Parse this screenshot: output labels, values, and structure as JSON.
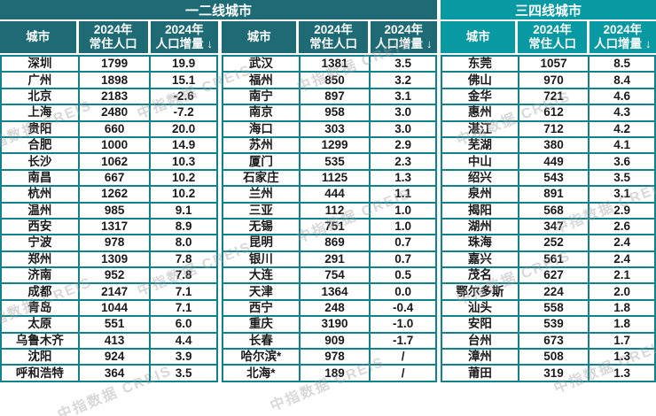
{
  "colors": {
    "header_dark_teal": "#1F6B75",
    "header_bright_teal": "#0899A2",
    "cell_border_teal": "#0F828C",
    "text": "#1A1A1A"
  },
  "watermark": {
    "text": "中指数据 CREIS"
  },
  "header": {
    "groups": [
      "一二线城市",
      "三四线城市"
    ],
    "city": "城市",
    "year": "2024年",
    "pop_line": "常住人口",
    "inc_line": "人口增量 ↓"
  },
  "chart_data": [
    {
      "type": "table",
      "group": "一二线城市",
      "columns": [
        "城市",
        "2024年常住人口",
        "2024年人口增量 ↓"
      ],
      "rows": [
        [
          "深圳",
          "1799",
          "19.9"
        ],
        [
          "广州",
          "1898",
          "15.1"
        ],
        [
          "北京",
          "2183",
          "-2.6"
        ],
        [
          "上海",
          "2480",
          "-7.2"
        ],
        [
          "贵阳",
          "660",
          "20.0"
        ],
        [
          "合肥",
          "1000",
          "14.9"
        ],
        [
          "长沙",
          "1062",
          "10.3"
        ],
        [
          "南昌",
          "667",
          "10.2"
        ],
        [
          "杭州",
          "1262",
          "10.2"
        ],
        [
          "温州",
          "985",
          "9.1"
        ],
        [
          "西安",
          "1317",
          "8.9"
        ],
        [
          "宁波",
          "978",
          "8.0"
        ],
        [
          "郑州",
          "1309",
          "7.8"
        ],
        [
          "济南",
          "952",
          "7.8"
        ],
        [
          "成都",
          "2147",
          "7.1"
        ],
        [
          "青岛",
          "1044",
          "7.1"
        ],
        [
          "太原",
          "551",
          "6.0"
        ],
        [
          "乌鲁木齐",
          "413",
          "4.4"
        ],
        [
          "沈阳",
          "924",
          "3.9"
        ],
        [
          "呼和浩特",
          "364",
          "3.5"
        ]
      ]
    },
    {
      "type": "table",
      "group": "一二线城市",
      "columns": [
        "城市",
        "2024年常住人口",
        "2024年人口增量 ↓"
      ],
      "rows": [
        [
          "武汉",
          "1381",
          "3.5"
        ],
        [
          "福州",
          "850",
          "3.2"
        ],
        [
          "南宁",
          "897",
          "3.1"
        ],
        [
          "南京",
          "958",
          "3.0"
        ],
        [
          "海口",
          "303",
          "3.0"
        ],
        [
          "苏州",
          "1299",
          "2.9"
        ],
        [
          "厦门",
          "535",
          "2.3"
        ],
        [
          "石家庄",
          "1125",
          "1.3"
        ],
        [
          "兰州",
          "444",
          "1.1"
        ],
        [
          "三亚",
          "112",
          "1.0"
        ],
        [
          "无锡",
          "751",
          "1.0"
        ],
        [
          "昆明",
          "869",
          "0.7"
        ],
        [
          "银川",
          "291",
          "0.7"
        ],
        [
          "大连",
          "754",
          "0.5"
        ],
        [
          "天津",
          "1364",
          "0.0"
        ],
        [
          "西宁",
          "248",
          "-0.4"
        ],
        [
          "重庆",
          "3190",
          "-1.0"
        ],
        [
          "长春",
          "909",
          "-1.7"
        ],
        [
          "哈尔滨*",
          "978",
          "/"
        ],
        [
          "北海*",
          "189",
          "/"
        ]
      ]
    },
    {
      "type": "table",
      "group": "三四线城市",
      "columns": [
        "城市",
        "2024年常住人口",
        "2024年人口增量 ↓"
      ],
      "rows": [
        [
          "东莞",
          "1057",
          "8.5"
        ],
        [
          "佛山",
          "970",
          "8.4"
        ],
        [
          "金华",
          "721",
          "4.6"
        ],
        [
          "惠州",
          "612",
          "4.3"
        ],
        [
          "湛江",
          "712",
          "4.2"
        ],
        [
          "芜湖",
          "380",
          "4.1"
        ],
        [
          "中山",
          "449",
          "3.6"
        ],
        [
          "绍兴",
          "543",
          "3.5"
        ],
        [
          "泉州",
          "891",
          "3.1"
        ],
        [
          "揭阳",
          "568",
          "2.9"
        ],
        [
          "湖州",
          "347",
          "2.6"
        ],
        [
          "珠海",
          "252",
          "2.4"
        ],
        [
          "嘉兴",
          "561",
          "2.4"
        ],
        [
          "茂名",
          "627",
          "2.1"
        ],
        [
          "鄂尔多斯",
          "224",
          "2.0"
        ],
        [
          "汕头",
          "558",
          "1.8"
        ],
        [
          "安阳",
          "539",
          "1.8"
        ],
        [
          "台州",
          "673",
          "1.7"
        ],
        [
          "漳州",
          "508",
          "1.3"
        ],
        [
          "莆田",
          "319",
          "1.3"
        ]
      ]
    }
  ]
}
